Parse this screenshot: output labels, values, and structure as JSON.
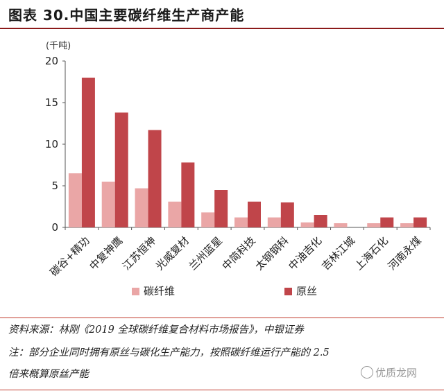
{
  "title": "图表 30.中国主要碳纤维生产商产能",
  "source": "资料来源：林刚《2019 全球碳纤维复合材料市场报告》，中银证券",
  "note_line1": "注：部分企业同时拥有原丝与碳化生产能力，按照碳纤维运行产能的 2.5",
  "note_line2": "倍来概算原丝产能",
  "watermark": "优质龙网",
  "colors": {
    "carbon_fiber": "#eaa6a6",
    "precursor": "#c0454a",
    "accent": "#8b1a1a"
  },
  "chart_data": {
    "type": "bar",
    "unit_label": "(千吨)",
    "categories": [
      "碳谷+精功",
      "中复神鹰",
      "江苏恒神",
      "光威复材",
      "兰州蓝星",
      "中简科技",
      "太钢钢科",
      "中油吉化",
      "吉林江城",
      "上海石化",
      "河南永煤"
    ],
    "series": [
      {
        "name": "碳纤维",
        "values": [
          6.5,
          5.5,
          4.7,
          3.1,
          1.8,
          1.2,
          1.2,
          0.6,
          0.5,
          0.5,
          0.5
        ]
      },
      {
        "name": "原丝",
        "values": [
          18.0,
          13.8,
          11.7,
          7.8,
          4.5,
          3.1,
          3.0,
          1.5,
          0,
          1.2,
          1.2
        ]
      }
    ],
    "ylim": [
      0,
      20
    ],
    "yticks": [
      0,
      5,
      10,
      15,
      20
    ],
    "legend_position": "bottom",
    "grid": false
  }
}
